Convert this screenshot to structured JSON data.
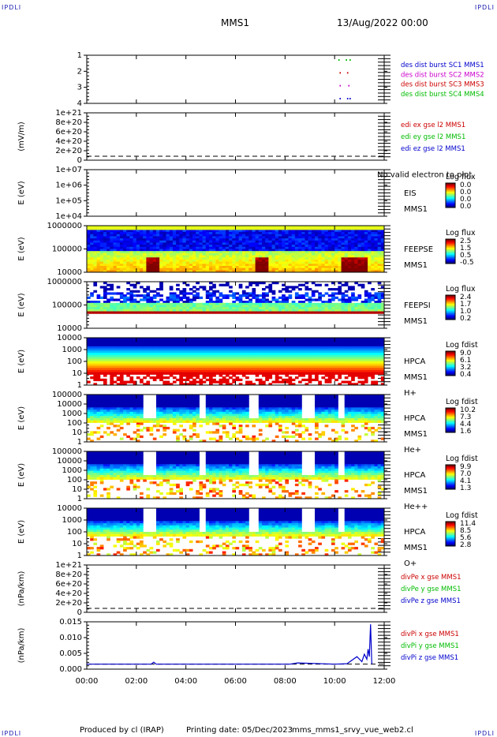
{
  "header": {
    "mission": "MMS1",
    "datetime": "13/Aug/2022 00:00",
    "corner_label": "IPDLI"
  },
  "footer": {
    "produced_by": "Produced by cl (IRAP)",
    "printing_date": "Printing date: 05/Dec/2023",
    "script_name": "mms_mms1_srvy_vue_web2.cl"
  },
  "time_axis": {
    "ticks": [
      "00:00",
      "02:00",
      "04:00",
      "06:00",
      "08:00",
      "10:00",
      "12:00"
    ]
  },
  "chart_data": [
    {
      "id": "burst",
      "type": "scatter",
      "ylabel": "",
      "ytick_labels": [
        "1",
        "2",
        "3",
        "4"
      ],
      "legend": [
        {
          "text": "des dist burst SC1 MMS1",
          "color": "#0000cc"
        },
        {
          "text": "des dist burst SC2 MMS2",
          "color": "#cc00cc"
        },
        {
          "text": "des dist burst SC3 MMS3",
          "color": "#cc0000"
        },
        {
          "text": "des dist burst SC4 MMS4",
          "color": "#00bb00"
        }
      ],
      "series": [
        {
          "color": "#0000cc",
          "y": 1,
          "x_hours": [
            10.2,
            10.5,
            10.6
          ]
        },
        {
          "color": "#cc00cc",
          "y": 2,
          "x_hours": [
            10.2,
            10.55
          ]
        },
        {
          "color": "#cc0000",
          "y": 3,
          "x_hours": [
            10.2,
            10.5
          ]
        },
        {
          "color": "#00bb00",
          "y": 4,
          "x_hours": [
            10.15,
            10.45,
            10.6
          ]
        }
      ]
    },
    {
      "id": "edi",
      "type": "line",
      "ylabel": "(mV/m)",
      "ytick_labels": [
        "1e+21",
        "8e+20",
        "6e+20",
        "4e+20",
        "2e+20",
        "0"
      ],
      "legend": [
        {
          "text": "edi ex gse l2 MMS1",
          "color": "#cc0000"
        },
        {
          "text": "edi ey gse l2 MMS1",
          "color": "#00bb00"
        },
        {
          "text": "edi ez gse l2 MMS1",
          "color": "#0000cc"
        }
      ]
    },
    {
      "id": "eis",
      "type": "heatmap",
      "ylabel": "E (eV)",
      "ytick_labels": [
        "1e+07",
        "1e+06",
        "1e+05",
        "1e+04"
      ],
      "right_labels": [
        "EIS",
        "MMS1"
      ],
      "overlay_label": "No valid electron to plot",
      "colorbar": {
        "title": "Log flux",
        "labels": [
          "0.0",
          "0.0",
          "0.0",
          "0.0"
        ]
      }
    },
    {
      "id": "feepse",
      "type": "heatmap",
      "ylabel": "E (eV)",
      "ytick_labels": [
        "1000000",
        "100000",
        "10000"
      ],
      "right_labels": [
        "FEEPSE",
        "MMS1"
      ],
      "colorbar": {
        "title": "Log flux",
        "labels": [
          "2.5",
          "1.5",
          "0.5",
          "-0.5"
        ]
      }
    },
    {
      "id": "feepsi",
      "type": "heatmap",
      "ylabel": "E (eV)",
      "ytick_labels": [
        "1000000",
        "100000",
        "10000"
      ],
      "right_labels": [
        "FEEPSI",
        "MMS1"
      ],
      "colorbar": {
        "title": "Log flux",
        "labels": [
          "2.4",
          "1.7",
          "1.0",
          "0.2"
        ]
      }
    },
    {
      "id": "hpca_h",
      "type": "heatmap",
      "ylabel": "E (eV)",
      "ytick_labels": [
        "10000",
        "1000",
        "100",
        "10",
        "1"
      ],
      "right_labels": [
        "HPCA",
        "MMS1",
        "H+"
      ],
      "colorbar": {
        "title": "Log fdist",
        "labels": [
          "9.0",
          "6.1",
          "3.2",
          "0.4"
        ]
      }
    },
    {
      "id": "hpca_he",
      "type": "heatmap",
      "ylabel": "E (eV)",
      "ytick_labels": [
        "100000",
        "10000",
        "1000",
        "100",
        "10",
        "1"
      ],
      "right_labels": [
        "HPCA",
        "MMS1",
        "He+"
      ],
      "colorbar": {
        "title": "Log fdist",
        "labels": [
          "10.2",
          "7.3",
          "4.4",
          "1.6"
        ]
      }
    },
    {
      "id": "hpca_he2",
      "type": "heatmap",
      "ylabel": "E (eV)",
      "ytick_labels": [
        "100000",
        "10000",
        "1000",
        "100",
        "10",
        "1"
      ],
      "right_labels": [
        "HPCA",
        "MMS1",
        "He++"
      ],
      "colorbar": {
        "title": "Log fdist",
        "labels": [
          "9.9",
          "7.0",
          "4.1",
          "1.3"
        ]
      }
    },
    {
      "id": "hpca_o",
      "type": "heatmap",
      "ylabel": "E (eV)",
      "ytick_labels": [
        "10000",
        "1000",
        "100",
        "10",
        "1"
      ],
      "right_labels": [
        "HPCA",
        "MMS1",
        "O+"
      ],
      "colorbar": {
        "title": "Log fdist",
        "labels": [
          "11.4",
          "8.5",
          "5.6",
          "2.8"
        ]
      }
    },
    {
      "id": "divpe",
      "type": "line",
      "ylabel": "(nPa/km)",
      "ytick_labels": [
        "1e+21",
        "8e+20",
        "6e+20",
        "4e+20",
        "2e+20",
        "0"
      ],
      "legend": [
        {
          "text": "divPe x gse MMS1",
          "color": "#cc0000"
        },
        {
          "text": "divPe y gse MMS1",
          "color": "#00bb00"
        },
        {
          "text": "divPe z gse MMS1",
          "color": "#0000cc"
        }
      ]
    },
    {
      "id": "divpi",
      "type": "line",
      "ylabel": "(nPa/km)",
      "ytick_labels": [
        "0.015",
        "0.010",
        "0.005",
        "0.000"
      ],
      "ylim": [
        -0.002,
        0.017
      ],
      "legend": [
        {
          "text": "divPi x gse MMS1",
          "color": "#cc0000"
        },
        {
          "text": "divPi y gse MMS1",
          "color": "#00bb00"
        },
        {
          "text": "divPi z gse MMS1",
          "color": "#0000cc"
        }
      ],
      "series": [
        {
          "name": "divPi z gse MMS1",
          "color": "#0000cc",
          "x_hours": [
            0,
            2.6,
            2.7,
            2.8,
            5.0,
            8.2,
            8.5,
            10.0,
            10.5,
            10.9,
            11.1,
            11.2,
            11.3,
            11.35,
            11.4,
            11.45,
            11.5
          ],
          "y": [
            0.0,
            0.0,
            0.0008,
            0.0,
            0.0,
            0.0,
            0.0005,
            0.0,
            0.0002,
            0.003,
            0.001,
            0.004,
            0.002,
            0.006,
            0.003,
            0.016,
            0.0
          ]
        }
      ]
    }
  ]
}
